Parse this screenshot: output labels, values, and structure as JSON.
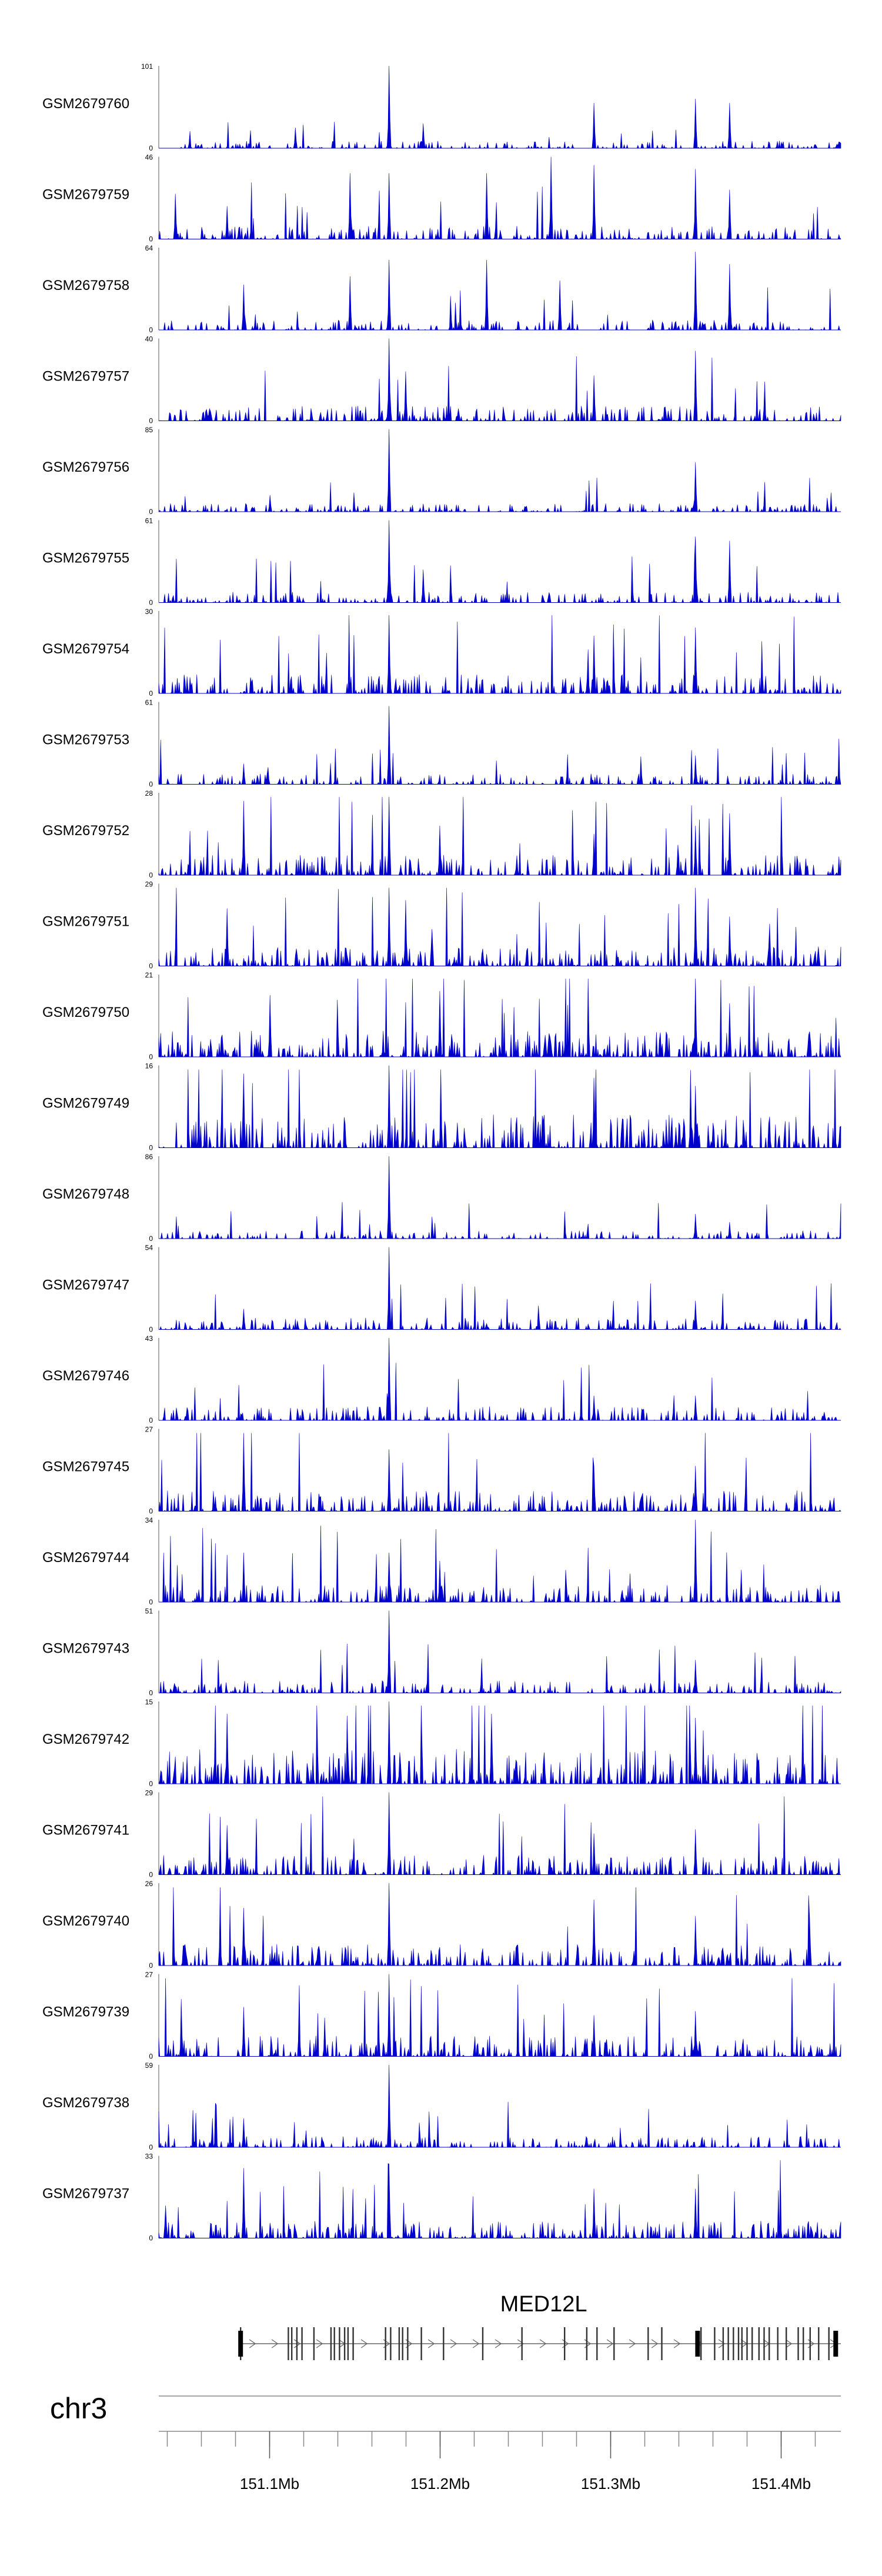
{
  "chart_data": {
    "type": "area",
    "chromosome": "chr3",
    "xlim_mb": [
      151.035,
      151.435
    ],
    "x_ticks": [
      {
        "value": 151.1,
        "label": "151.1Mb"
      },
      {
        "value": 151.2,
        "label": "151.2Mb"
      },
      {
        "value": 151.3,
        "label": "151.3Mb"
      },
      {
        "value": 151.4,
        "label": "151.4Mb"
      }
    ],
    "signal_color": "#0000cc",
    "tracks": [
      {
        "name": "GSM2679760",
        "ymax": 101,
        "ymin": 0,
        "peaks": [
          [
            151.17,
            1.0
          ],
          [
            151.19,
            0.3
          ],
          [
            151.29,
            0.55
          ],
          [
            151.35,
            0.6
          ],
          [
            151.37,
            0.55
          ],
          [
            151.115,
            0.25
          ]
        ]
      },
      {
        "name": "GSM2679759",
        "ymax": 46,
        "ymin": 0,
        "peaks": [
          [
            151.045,
            0.55
          ],
          [
            151.075,
            0.4
          ],
          [
            151.147,
            0.8
          ],
          [
            151.17,
            0.8
          ],
          [
            151.227,
            0.8
          ],
          [
            151.265,
            1.0
          ],
          [
            151.29,
            0.9
          ],
          [
            151.35,
            0.85
          ],
          [
            151.37,
            0.6
          ]
        ]
      },
      {
        "name": "GSM2679758",
        "ymax": 64,
        "ymin": 0,
        "peaks": [
          [
            151.085,
            0.55
          ],
          [
            151.147,
            0.65
          ],
          [
            151.17,
            0.85
          ],
          [
            151.227,
            0.85
          ],
          [
            151.27,
            0.6
          ],
          [
            151.35,
            0.95
          ],
          [
            151.37,
            0.8
          ]
        ]
      },
      {
        "name": "GSM2679757",
        "ymax": 40,
        "ymin": 0,
        "peaks": [
          [
            151.17,
            1.0
          ],
          [
            151.18,
            0.6
          ],
          [
            151.29,
            0.55
          ],
          [
            151.35,
            0.85
          ]
        ]
      },
      {
        "name": "GSM2679756",
        "ymax": 85,
        "ymin": 0,
        "peaks": [
          [
            151.17,
            1.0
          ],
          [
            151.35,
            0.6
          ],
          [
            151.1,
            0.2
          ]
        ]
      },
      {
        "name": "GSM2679755",
        "ymax": 61,
        "ymin": 0,
        "peaks": [
          [
            151.17,
            1.0
          ],
          [
            151.19,
            0.4
          ],
          [
            151.35,
            0.8
          ],
          [
            151.37,
            0.75
          ]
        ]
      },
      {
        "name": "GSM2679754",
        "ymax": 30,
        "ymin": 0,
        "peaks": [
          [
            151.17,
            0.95
          ],
          [
            151.29,
            0.7
          ],
          [
            151.35,
            0.8
          ]
        ]
      },
      {
        "name": "GSM2679753",
        "ymax": 61,
        "ymin": 0,
        "peaks": [
          [
            151.17,
            0.95
          ],
          [
            151.35,
            0.35
          ],
          [
            151.085,
            0.25
          ]
        ]
      },
      {
        "name": "GSM2679752",
        "ymax": 28,
        "ymin": 0,
        "peaks": [
          [
            151.085,
            0.9
          ],
          [
            151.17,
            0.95
          ],
          [
            151.2,
            0.6
          ],
          [
            151.29,
            0.5
          ],
          [
            151.35,
            0.6
          ],
          [
            151.37,
            0.75
          ]
        ]
      },
      {
        "name": "GSM2679751",
        "ymax": 29,
        "ymin": 0,
        "peaks": [
          [
            151.075,
            0.7
          ],
          [
            151.17,
            0.95
          ],
          [
            151.18,
            0.8
          ],
          [
            151.35,
            0.95
          ],
          [
            151.37,
            0.6
          ]
        ]
      },
      {
        "name": "GSM2679750",
        "ymax": 21,
        "ymin": 0,
        "peaks": [
          [
            151.1,
            0.75
          ],
          [
            151.2,
            0.8
          ],
          [
            151.35,
            0.95
          ],
          [
            151.37,
            0.65
          ]
        ]
      },
      {
        "name": "GSM2679749",
        "ymax": 16,
        "ymin": 0,
        "peaks": [
          [
            151.085,
            0.9
          ],
          [
            151.17,
            1.0
          ],
          [
            151.29,
            0.85
          ],
          [
            151.35,
            0.75
          ]
        ]
      },
      {
        "name": "GSM2679748",
        "ymax": 86,
        "ymin": 0,
        "peaks": [
          [
            151.17,
            1.0
          ],
          [
            151.35,
            0.3
          ],
          [
            151.37,
            0.2
          ]
        ]
      },
      {
        "name": "GSM2679747",
        "ymax": 54,
        "ymin": 0,
        "peaks": [
          [
            151.17,
            1.0
          ],
          [
            151.35,
            0.35
          ],
          [
            151.085,
            0.25
          ]
        ]
      },
      {
        "name": "GSM2679746",
        "ymax": 43,
        "ymin": 0,
        "peaks": [
          [
            151.17,
            1.0
          ],
          [
            151.29,
            0.3
          ],
          [
            151.35,
            0.3
          ]
        ]
      },
      {
        "name": "GSM2679745",
        "ymax": 27,
        "ymin": 0,
        "peaks": [
          [
            151.085,
            0.95
          ],
          [
            151.17,
            0.75
          ],
          [
            151.29,
            0.55
          ],
          [
            151.35,
            0.55
          ]
        ]
      },
      {
        "name": "GSM2679744",
        "ymax": 34,
        "ymin": 0,
        "peaks": [
          [
            151.085,
            0.6
          ],
          [
            151.17,
            0.6
          ],
          [
            151.35,
            1.0
          ],
          [
            151.2,
            0.5
          ]
        ]
      },
      {
        "name": "GSM2679743",
        "ymax": 51,
        "ymin": 0,
        "peaks": [
          [
            151.17,
            1.0
          ],
          [
            151.35,
            0.4
          ]
        ]
      },
      {
        "name": "GSM2679742",
        "ymax": 15,
        "ymin": 0,
        "peaks": [
          [
            151.17,
            1.0
          ],
          [
            151.075,
            0.85
          ],
          [
            151.23,
            0.85
          ],
          [
            151.35,
            0.8
          ]
        ]
      },
      {
        "name": "GSM2679741",
        "ymax": 29,
        "ymin": 0,
        "peaks": [
          [
            151.17,
            1.0
          ],
          [
            151.075,
            0.6
          ],
          [
            151.29,
            0.5
          ],
          [
            151.35,
            0.55
          ]
        ]
      },
      {
        "name": "GSM2679740",
        "ymax": 26,
        "ymin": 0,
        "peaks": [
          [
            151.17,
            1.0
          ],
          [
            151.085,
            0.7
          ],
          [
            151.29,
            0.8
          ],
          [
            151.35,
            0.6
          ]
        ]
      },
      {
        "name": "GSM2679739",
        "ymax": 27,
        "ymin": 0,
        "peaks": [
          [
            151.17,
            1.0
          ],
          [
            151.085,
            0.6
          ],
          [
            151.29,
            0.5
          ],
          [
            151.35,
            0.55
          ]
        ]
      },
      {
        "name": "GSM2679738",
        "ymax": 59,
        "ymin": 0,
        "peaks": [
          [
            151.17,
            1.0
          ],
          [
            151.085,
            0.35
          ]
        ]
      },
      {
        "name": "GSM2679737",
        "ymax": 33,
        "ymin": 0,
        "peaks": [
          [
            151.085,
            0.85
          ],
          [
            151.17,
            0.9
          ],
          [
            151.29,
            0.6
          ],
          [
            151.35,
            0.6
          ]
        ]
      }
    ],
    "gene": {
      "name": "MED12L",
      "start_mb": 151.083,
      "end_mb": 151.435,
      "strand": "+",
      "exons_mb": [
        151.083,
        151.111,
        151.113,
        151.116,
        151.119,
        151.126,
        151.136,
        151.138,
        151.141,
        151.144,
        151.146,
        151.149,
        151.168,
        151.171,
        151.176,
        151.178,
        151.181,
        151.189,
        151.202,
        151.225,
        151.248,
        151.273,
        151.286,
        151.292,
        151.302,
        151.322,
        151.33,
        151.353,
        151.361,
        151.366,
        151.369,
        151.372,
        151.375,
        151.377,
        151.38,
        151.383,
        151.387,
        151.39,
        151.393,
        151.398,
        151.403,
        151.41,
        151.413,
        151.417,
        151.422,
        151.428
      ],
      "thick_exons_mb": [
        151.083,
        151.351,
        151.432
      ]
    }
  }
}
